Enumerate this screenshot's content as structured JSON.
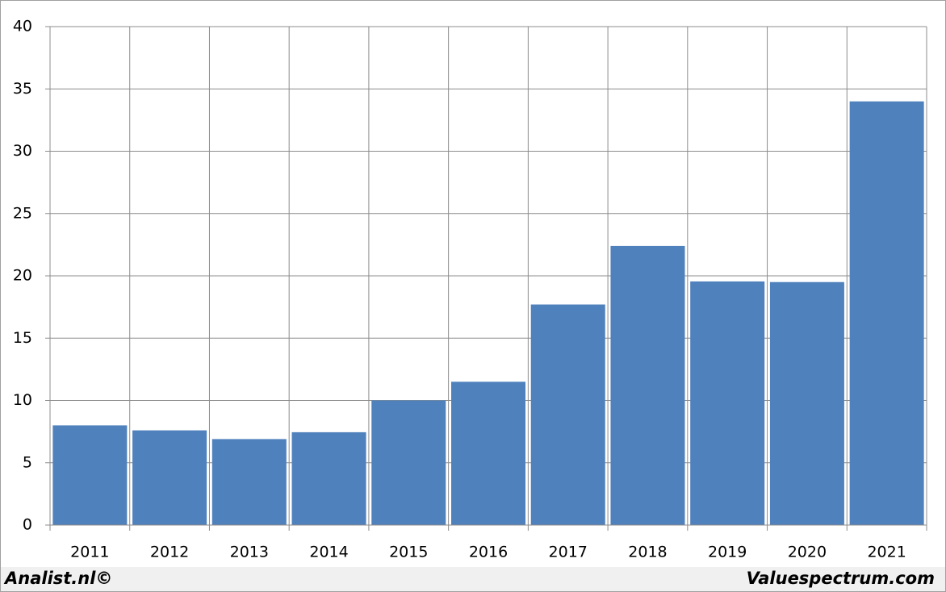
{
  "chart_data": {
    "type": "bar",
    "categories": [
      "2011",
      "2012",
      "2013",
      "2014",
      "2015",
      "2016",
      "2017",
      "2018",
      "2019",
      "2020",
      "2021"
    ],
    "values": [
      8.0,
      7.6,
      6.9,
      7.45,
      10.0,
      11.5,
      17.7,
      22.4,
      19.55,
      19.5,
      34.0
    ],
    "color": "#4f81bd",
    "ylim": [
      0,
      40
    ],
    "yticks": [
      0,
      5,
      10,
      15,
      20,
      25,
      30,
      35,
      40
    ],
    "grid": true,
    "footer_left": "Analist.nl©",
    "footer_right": "Valuespectrum.com"
  }
}
